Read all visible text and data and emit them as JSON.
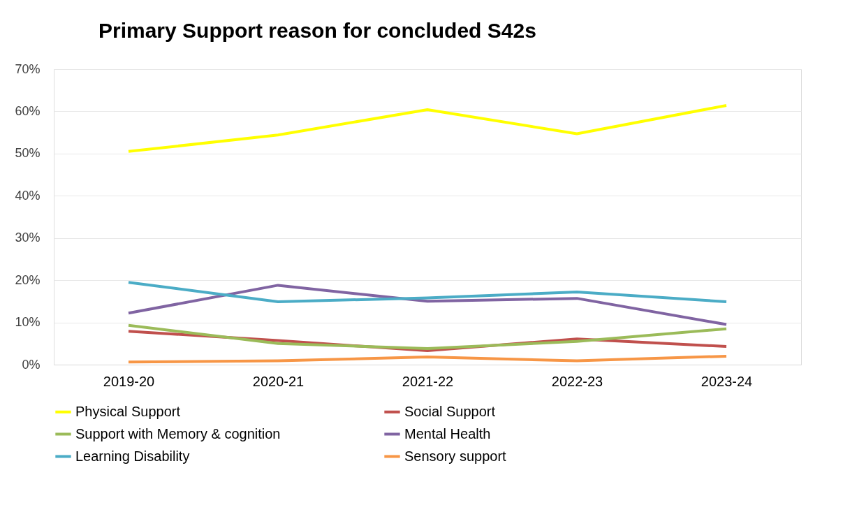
{
  "chart_data": {
    "type": "line",
    "title": "Primary Support reason for concluded S42s",
    "categories": [
      "2019-20",
      "2020-21",
      "2021-22",
      "2022-23",
      "2023-24"
    ],
    "series": [
      {
        "name": "Physical Support",
        "color": "#ffff00",
        "values": [
          50.5,
          54.4,
          60.4,
          54.7,
          61.4
        ]
      },
      {
        "name": "Social Support",
        "color": "#c0504d",
        "values": [
          7.9,
          5.7,
          3.3,
          6.1,
          4.3
        ]
      },
      {
        "name": "Support with Memory & cognition",
        "color": "#9bbb59",
        "values": [
          9.3,
          5.0,
          3.8,
          5.5,
          8.5
        ]
      },
      {
        "name": "Mental Health",
        "color": "#8064a2",
        "values": [
          12.2,
          18.8,
          15.0,
          15.7,
          9.5
        ]
      },
      {
        "name": "Learning Disability",
        "color": "#4bacc6",
        "values": [
          19.5,
          14.9,
          15.8,
          17.2,
          14.9
        ]
      },
      {
        "name": "Sensory support",
        "color": "#f79646",
        "values": [
          0.6,
          0.9,
          1.8,
          0.9,
          2.0
        ]
      }
    ],
    "ylim": [
      0,
      70
    ],
    "yticks": [
      {
        "value": 0,
        "label": "0%"
      },
      {
        "value": 10,
        "label": "10%"
      },
      {
        "value": 20,
        "label": "20%"
      },
      {
        "value": 30,
        "label": "30%"
      },
      {
        "value": 40,
        "label": "40%"
      },
      {
        "value": 50,
        "label": "50%"
      },
      {
        "value": 60,
        "label": "60%"
      },
      {
        "value": 70,
        "label": "70%"
      }
    ],
    "grid": "y",
    "legend": "bottom",
    "marker": "none",
    "line_style": "solid"
  }
}
